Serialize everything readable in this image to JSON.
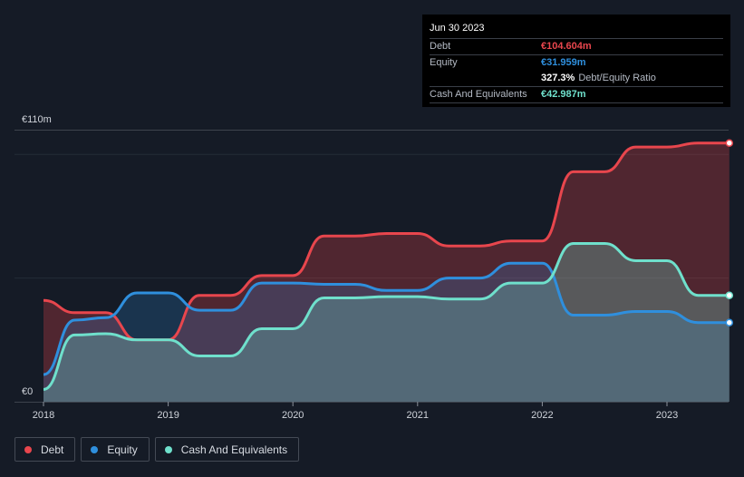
{
  "tooltip": {
    "date": "Jun 30 2023",
    "debt_label": "Debt",
    "debt_value": "€104.604m",
    "equity_label": "Equity",
    "equity_value": "€31.959m",
    "ratio_value": "327.3%",
    "ratio_label": "Debt/Equity Ratio",
    "cash_label": "Cash And Equivalents",
    "cash_value": "€42.987m"
  },
  "legend": {
    "debt": "Debt",
    "equity": "Equity",
    "cash": "Cash And Equivalents"
  },
  "colors": {
    "debt": "#e8464d",
    "equity": "#2f8fdd",
    "cash": "#6fe0cc",
    "background": "#151b26"
  },
  "chart_data": {
    "type": "area",
    "title": "",
    "xlabel": "",
    "ylabel": "",
    "y_top_label": "€110m",
    "y_bottom_label": "€0",
    "ylim": [
      0,
      110
    ],
    "xlim": [
      2018.0,
      2023.5
    ],
    "x_ticks": [
      {
        "value": 2018,
        "label": "2018"
      },
      {
        "value": 2019,
        "label": "2019"
      },
      {
        "value": 2020,
        "label": "2020"
      },
      {
        "value": 2021,
        "label": "2021"
      },
      {
        "value": 2022,
        "label": "2022"
      },
      {
        "value": 2023,
        "label": "2023"
      }
    ],
    "series": [
      {
        "key": "debt",
        "name": "Debt",
        "x": [
          2018.0,
          2018.25,
          2018.5,
          2018.75,
          2019.0,
          2019.25,
          2019.5,
          2019.75,
          2020.0,
          2020.25,
          2020.5,
          2020.75,
          2021.0,
          2021.25,
          2021.5,
          2021.75,
          2022.0,
          2022.25,
          2022.5,
          2022.75,
          2023.0,
          2023.25,
          2023.5
        ],
        "values": [
          41,
          36,
          36,
          25,
          25,
          43,
          43,
          51,
          51,
          67,
          67,
          68,
          68,
          63,
          63,
          65,
          65,
          93,
          93,
          103,
          103,
          104.6,
          104.6
        ]
      },
      {
        "key": "equity",
        "name": "Equity",
        "x": [
          2018.0,
          2018.25,
          2018.5,
          2018.75,
          2019.0,
          2019.25,
          2019.5,
          2019.75,
          2020.0,
          2020.25,
          2020.5,
          2020.75,
          2021.0,
          2021.25,
          2021.5,
          2021.75,
          2022.0,
          2022.25,
          2022.5,
          2022.75,
          2023.0,
          2023.25,
          2023.5
        ],
        "values": [
          11,
          33,
          34,
          44,
          44,
          37,
          37,
          48,
          48,
          47.5,
          47.5,
          45,
          45,
          50,
          50,
          56,
          56,
          35,
          35,
          36.5,
          36.5,
          32,
          32
        ]
      },
      {
        "key": "cash",
        "name": "Cash And Equivalents",
        "x": [
          2018.0,
          2018.25,
          2018.5,
          2018.75,
          2019.0,
          2019.25,
          2019.5,
          2019.75,
          2020.0,
          2020.25,
          2020.5,
          2020.75,
          2021.0,
          2021.25,
          2021.5,
          2021.75,
          2022.0,
          2022.25,
          2022.5,
          2022.75,
          2023.0,
          2023.25,
          2023.5
        ],
        "values": [
          5,
          27,
          27.5,
          25,
          25,
          18.5,
          18.5,
          29.5,
          29.5,
          42,
          42,
          42.5,
          42.5,
          41.5,
          41.5,
          48,
          48,
          64,
          64,
          57,
          57,
          43,
          43
        ]
      }
    ]
  }
}
